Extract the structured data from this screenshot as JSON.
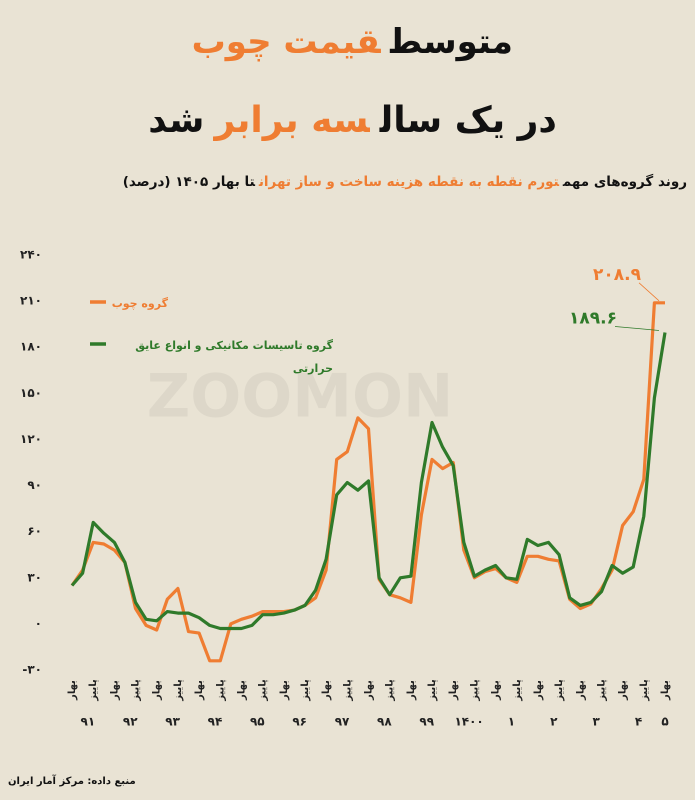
{
  "chart_data": {
    "type": "line",
    "title_line1": [
      {
        "text": "متوسط"
      },
      {
        "text": "قیمت چوب",
        "color": "#ef7d32"
      }
    ],
    "title_line2": [
      {
        "text": "در یک سال"
      },
      {
        "text": "سه برابر",
        "color": "#ef7d32"
      },
      {
        "text": "شد"
      }
    ],
    "subtitle": [
      {
        "text": "روند گروه‌های مهم"
      },
      {
        "text": "تورم نقطه به نقطه هزینه ساخت و ساز تهران",
        "color": "#ef7d32"
      },
      {
        "text": "تا بهار ۱۴۰۵ (درصد)"
      }
    ],
    "source": "منبع داده: مرکز آمار ایران",
    "watermark": "ZOOMON",
    "categories": [
      "بهار",
      null,
      "پاییز",
      null,
      "بهار",
      null,
      "پاییز",
      null,
      "بهار",
      null,
      "پاییز",
      null,
      "بهار",
      null,
      "پاییز",
      null,
      "بهار",
      null,
      "پاییز",
      null,
      "بهار",
      null,
      "پاییز",
      null,
      "بهار",
      null,
      "پاییز",
      null,
      "بهار",
      null,
      "پاییز",
      null,
      "بهار",
      null,
      "پاییز",
      null,
      "بهار",
      null,
      "پاییز",
      null,
      "بهار",
      null,
      "پاییز",
      null,
      "بهار",
      null,
      "پاییز",
      null,
      "بهار",
      null,
      "پاییز",
      null,
      "بهار",
      null,
      "پاییز",
      null,
      "بهار"
    ],
    "years": [
      "۹۱",
      "۹۲",
      "۹۳",
      "۹۴",
      "۹۵",
      "۹۶",
      "۹۷",
      "۹۸",
      "۹۹",
      "۱۴۰۰",
      "۱",
      "۲",
      "۳",
      "۴",
      "۵"
    ],
    "series": [
      {
        "name": "گروه چوب",
        "color": "#ef7d32",
        "values": [
          25,
          35,
          53,
          52,
          48,
          40,
          10,
          -1,
          -4,
          16,
          23,
          -5,
          -6,
          -24,
          -24,
          0,
          3,
          5,
          8,
          8,
          8,
          9,
          12,
          17,
          35,
          107,
          112,
          134,
          127,
          29,
          19,
          17,
          14,
          71,
          107,
          101,
          105,
          48,
          30,
          34,
          36,
          30,
          27,
          44,
          44,
          42,
          41,
          16,
          10,
          13,
          23,
          35,
          64,
          73,
          94,
          208.9,
          208.9
        ],
        "value_labels": [
          null,
          null,
          null,
          null,
          null,
          null,
          null,
          null,
          null,
          null,
          null,
          null,
          null,
          null,
          null,
          null,
          null,
          null,
          null,
          null,
          null,
          null,
          null,
          null,
          null,
          null,
          null,
          null,
          null,
          null,
          null,
          null,
          null,
          null,
          null,
          null,
          null,
          null,
          null,
          null,
          null,
          null,
          null,
          null,
          null,
          null,
          null,
          null,
          null,
          null,
          null,
          null,
          null,
          null,
          null,
          null,
          "۲۰۸.۹"
        ]
      },
      {
        "name": "گروه تاسیسات مکانیکی و انواع عایق حرارتی",
        "color": "#2f7a2a",
        "values": [
          25,
          33,
          66,
          59,
          53,
          40,
          14,
          3,
          2,
          8,
          7,
          7,
          4,
          -1,
          -3,
          -3,
          -3,
          -1,
          6,
          6,
          7,
          9,
          12,
          22,
          42,
          84,
          92,
          87,
          93,
          30,
          19,
          30,
          31,
          92,
          131,
          115,
          103,
          53,
          31,
          35,
          38,
          30,
          29,
          55,
          51,
          53,
          45,
          17,
          12,
          14,
          21,
          38,
          33,
          37,
          70,
          147,
          189.6
        ],
        "value_labels": [
          null,
          null,
          null,
          null,
          null,
          null,
          null,
          null,
          null,
          null,
          null,
          null,
          null,
          null,
          null,
          null,
          null,
          null,
          null,
          null,
          null,
          null,
          null,
          null,
          null,
          null,
          null,
          null,
          null,
          null,
          null,
          null,
          null,
          null,
          null,
          null,
          null,
          null,
          null,
          null,
          null,
          null,
          null,
          null,
          null,
          null,
          null,
          null,
          null,
          null,
          null,
          null,
          null,
          null,
          null,
          null,
          "۱۸۹.۶"
        ]
      }
    ],
    "ylim": [
      -30,
      240
    ],
    "yticks": [
      {
        "value": -30,
        "label": "-۳۰"
      },
      {
        "value": 0,
        "label": "۰"
      },
      {
        "value": 30,
        "label": "۳۰"
      },
      {
        "value": 60,
        "label": "۶۰"
      },
      {
        "value": 90,
        "label": "۹۰"
      },
      {
        "value": 120,
        "label": "۱۲۰"
      },
      {
        "value": 150,
        "label": "۱۵۰"
      },
      {
        "value": 180,
        "label": "۱۸۰"
      },
      {
        "value": 210,
        "label": "۲۱۰"
      },
      {
        "value": 240,
        "label": "۲۴۰"
      }
    ],
    "grid": false
  }
}
